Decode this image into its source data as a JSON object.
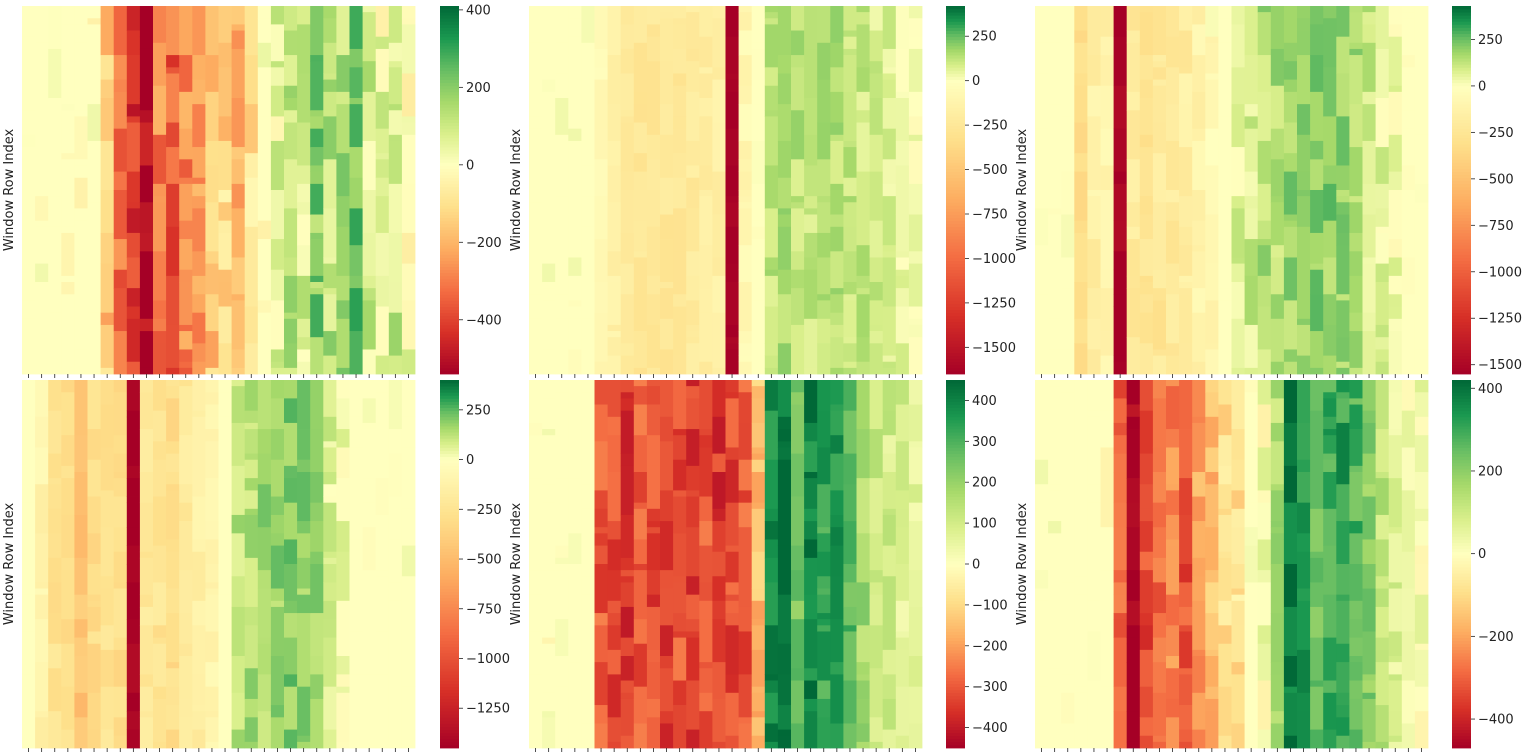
{
  "figure": {
    "background": "#ffffff"
  },
  "chart_data": [
    {
      "type": "heatmap",
      "ylabel": "Window Row Index",
      "n_columns": 30,
      "n_rows": 60,
      "colormap": "RdYlGn",
      "vmin": -540,
      "vmax": 410,
      "colorbar_ticks": [
        400,
        200,
        0,
        -200,
        -400
      ],
      "column_profile": [
        0,
        0,
        0,
        0,
        0,
        0,
        -150,
        -330,
        -420,
        -540,
        -280,
        -350,
        -280,
        -240,
        -150,
        -120,
        -210,
        -80,
        0,
        60,
        120,
        80,
        200,
        120,
        140,
        230,
        80,
        40,
        110,
        20
      ],
      "row_variation": 90
    },
    {
      "type": "heatmap",
      "ylabel": "Window Row Index",
      "n_columns": 30,
      "n_rows": 60,
      "colormap": "RdYlGn",
      "vmin": -1650,
      "vmax": 420,
      "colorbar_ticks": [
        250,
        0,
        -250,
        -500,
        -750,
        -1000,
        -1250,
        -1500
      ],
      "column_profile": [
        0,
        0,
        0,
        0,
        0,
        -80,
        -150,
        -200,
        -250,
        -250,
        -250,
        -240,
        -220,
        -200,
        -160,
        -1650,
        -80,
        0,
        120,
        160,
        130,
        120,
        140,
        140,
        120,
        110,
        90,
        70,
        40,
        10
      ],
      "row_variation": 60
    },
    {
      "type": "heatmap",
      "ylabel": "Window Row Index",
      "n_columns": 30,
      "n_rows": 60,
      "colormap": "RdYlGn",
      "vmin": -1550,
      "vmax": 430,
      "colorbar_ticks": [
        250,
        0,
        -250,
        -500,
        -750,
        -1000,
        -1250,
        -1500
      ],
      "column_profile": [
        0,
        0,
        0,
        -300,
        -150,
        -120,
        -1550,
        -200,
        -250,
        -230,
        -200,
        -180,
        -100,
        -60,
        0,
        60,
        100,
        150,
        160,
        180,
        200,
        220,
        200,
        180,
        150,
        100,
        60,
        20,
        0,
        0
      ],
      "row_variation": 80
    },
    {
      "type": "heatmap",
      "ylabel": "Window Row Index",
      "n_columns": 30,
      "n_rows": 60,
      "colormap": "RdYlGn",
      "vmin": -1450,
      "vmax": 400,
      "colorbar_ticks": [
        250,
        0,
        -250,
        -500,
        -750,
        -1000,
        -1250
      ],
      "column_profile": [
        0,
        -100,
        -250,
        -300,
        -450,
        -300,
        -250,
        -300,
        -1450,
        -200,
        -250,
        -300,
        -200,
        -150,
        -100,
        0,
        120,
        140,
        160,
        180,
        200,
        180,
        160,
        60,
        20,
        0,
        0,
        0,
        0,
        0
      ],
      "row_variation": 70
    },
    {
      "type": "heatmap",
      "ylabel": "Window Row Index",
      "n_columns": 30,
      "n_rows": 60,
      "colormap": "RdYlGn",
      "vmin": -450,
      "vmax": 450,
      "colorbar_ticks": [
        400,
        300,
        200,
        100,
        0,
        -100,
        -200,
        -300,
        -400
      ],
      "column_profile": [
        0,
        0,
        0,
        0,
        0,
        -300,
        -320,
        -350,
        -300,
        -320,
        -330,
        -310,
        -340,
        -300,
        -350,
        -320,
        -300,
        -150,
        380,
        430,
        250,
        400,
        330,
        350,
        280,
        180,
        120,
        100,
        80,
        60
      ],
      "row_variation": 60
    },
    {
      "type": "heatmap",
      "ylabel": "Window Row Index",
      "n_columns": 30,
      "n_rows": 60,
      "colormap": "RdYlGn",
      "vmin": -470,
      "vmax": 420,
      "colorbar_ticks": [
        400,
        200,
        0,
        -200,
        -400
      ],
      "column_profile": [
        0,
        0,
        0,
        0,
        0,
        0,
        -300,
        -470,
        -330,
        -280,
        -250,
        -330,
        -200,
        -160,
        -100,
        -80,
        0,
        20,
        150,
        400,
        330,
        250,
        300,
        320,
        280,
        200,
        120,
        60,
        40,
        20
      ],
      "row_variation": 60
    }
  ]
}
